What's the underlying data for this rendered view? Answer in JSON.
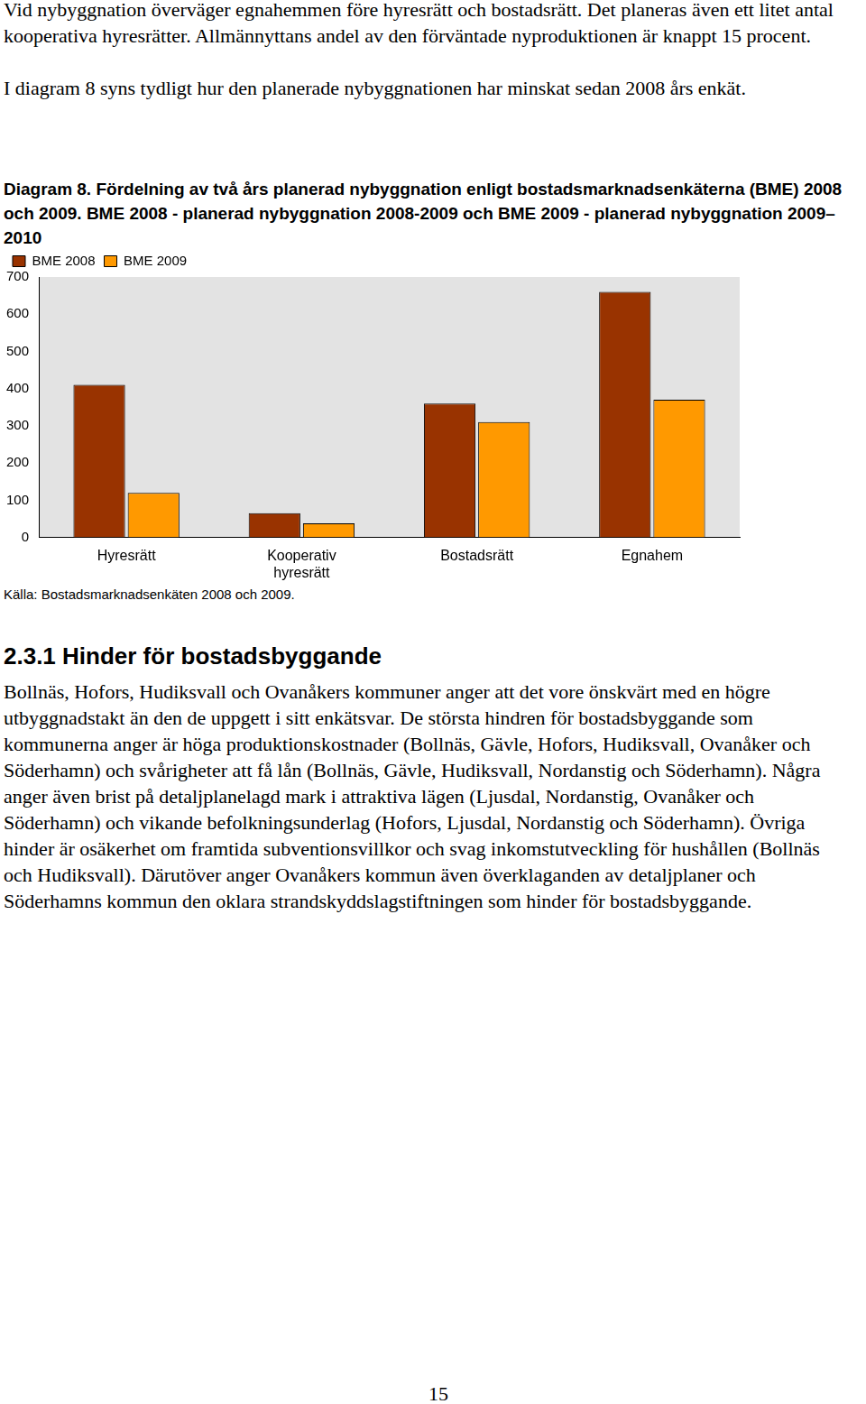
{
  "document": {
    "paragraphs_before": [
      "Vid nybyggnation överväger egnahemmen före hyresrätt och bostadsrätt. Det planeras även ett litet antal kooperativa hyresrätter. Allmännyttans andel av den förväntade nyproduktionen är knappt 15 procent.",
      "I diagram 8 syns tydligt hur den planerade nybyggnationen har minskat sedan 2008 års enkät."
    ],
    "source": "Källa: Bostadsmarknadsenkäten 2008 och 2009.",
    "section": {
      "heading": "2.3.1 Hinder för bostadsbyggande",
      "paragraphs": [
        "Bollnäs, Hofors, Hudiksvall och Ovanåkers kommuner anger att det vore önskvärt med en högre utbyggnadstakt än den de uppgett i sitt enkätsvar. De största hindren för bostadsbyggande som kommunerna anger är höga produktionskostnader (Bollnäs, Gävle, Hofors, Hudiksvall, Ovanåker och Söderhamn) och svårigheter att få lån (Bollnäs, Gävle, Hudiksvall, Nordanstig och Söderhamn). Några anger även brist på detaljplanelagd mark i attraktiva lägen (Ljusdal, Nordanstig, Ovanåker och Söderhamn) och vikande befolkningsunderlag (Hofors, Ljusdal, Nordanstig och Söderhamn). Övriga hinder är osäkerhet om framtida subventionsvillkor och svag inkomstutveckling för hushållen (Bollnäs och Hudiksvall). Därutöver anger Ovanåkers kommun även överklaganden av detaljplaner och Söderhamns kommun den oklara strandskyddslagstiftningen som hinder för bostadsbyggande."
      ]
    },
    "page_number": "15"
  },
  "chart_data": {
    "type": "bar",
    "title": "Diagram 8. Fördelning av två års planerad nybyggnation enligt bostadsmarknadsenkäterna (BME) 2008 och 2009. BME 2008 - planerad nybyggnation 2008-2009 och BME 2009 - planerad nybyggnation 2009–2010",
    "categories": [
      "Hyresrätt",
      "Kooperativ hyresrätt",
      "Bostadsrätt",
      "Egnahem"
    ],
    "series": [
      {
        "name": "BME 2008",
        "color": "#993300",
        "values": [
          410,
          65,
          360,
          660
        ]
      },
      {
        "name": "BME 2009",
        "color": "#ff9900",
        "values": [
          120,
          38,
          310,
          370
        ]
      }
    ],
    "ylim": [
      0,
      700
    ],
    "yticks": [
      0,
      100,
      200,
      300,
      400,
      500,
      600,
      700
    ],
    "grid": false,
    "legend": "top-left"
  }
}
